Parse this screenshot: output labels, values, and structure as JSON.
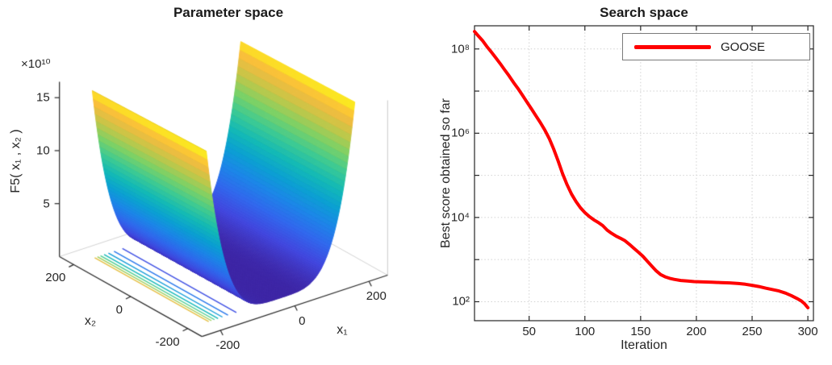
{
  "figure": {
    "background": "#ffffff"
  },
  "chart_data": [
    {
      "type": "surface",
      "title": "Parameter space",
      "x_label": "x₁",
      "y_label": "x₂",
      "z_label": "F5( x₁ , x₂ )",
      "z_exponent_label": "×10¹⁰",
      "x_range": [
        -200,
        200
      ],
      "y_range": [
        -200,
        200
      ],
      "x_ticks": [
        -200,
        0,
        200
      ],
      "y_ticks": [
        -200,
        0,
        200
      ],
      "z_ticks_e10": [
        5,
        10,
        15
      ],
      "z_axis_max_e10": 16.5,
      "surface_function": {
        "name": "rosenbrock",
        "a": 100,
        "b": 1
      },
      "colormap": "parula",
      "floor_contour_levels_e10": [
        2,
        4,
        6,
        8,
        10,
        12,
        14
      ],
      "view": {
        "azimuth": -37.5,
        "elevation": 30
      }
    },
    {
      "type": "line",
      "title": "Search space",
      "xlabel": "Iteration",
      "ylabel": "Best score obtained so far",
      "x_range": [
        1,
        305
      ],
      "y_exp_range": [
        1.55,
        8.55
      ],
      "x_ticks": [
        50,
        100,
        150,
        200,
        250,
        300
      ],
      "y_ticks": [
        {
          "exponent": 8,
          "label": "10⁸"
        },
        {
          "exponent": 6,
          "label": "10⁶"
        },
        {
          "exponent": 4,
          "label": "10⁴"
        },
        {
          "exponent": 2,
          "label": "10²"
        }
      ],
      "grid": true,
      "grid_color": "#d2d2d2",
      "axis_color": "#262626",
      "legend": {
        "position": "northeast"
      },
      "series": [
        {
          "name": "GOOSE",
          "color": "#ff0000",
          "width": 4,
          "points": [
            [
              1,
              260000000.0
            ],
            [
              4,
              210000000.0
            ],
            [
              8,
              160000000.0
            ],
            [
              12,
              115000000.0
            ],
            [
              16,
              85000000.0
            ],
            [
              20,
              62000000.0
            ],
            [
              24,
              45000000.0
            ],
            [
              28,
              32000000.0
            ],
            [
              32,
              23000000.0
            ],
            [
              36,
              16000000.0
            ],
            [
              40,
              11500000.0
            ],
            [
              44,
              8000000.0
            ],
            [
              48,
              5500000.0
            ],
            [
              52,
              3800000.0
            ],
            [
              56,
              2600000.0
            ],
            [
              60,
              1800000.0
            ],
            [
              64,
              1200000.0
            ],
            [
              68,
              750000.0
            ],
            [
              72,
              420000.0
            ],
            [
              76,
              220000.0
            ],
            [
              80,
              110000.0
            ],
            [
              84,
              60000.0
            ],
            [
              88,
              36000.0
            ],
            [
              92,
              24000.0
            ],
            [
              96,
              17000.0
            ],
            [
              100,
              13000.0
            ],
            [
              104,
              10500.0
            ],
            [
              108,
              8800.0
            ],
            [
              112,
              7600.0
            ],
            [
              116,
              6400.0
            ],
            [
              120,
              5000.0
            ],
            [
              124,
              4200.0
            ],
            [
              128,
              3600.0
            ],
            [
              132,
              3200.0
            ],
            [
              136,
              2800.0
            ],
            [
              140,
              2300.0
            ],
            [
              144,
              1850.0
            ],
            [
              148,
              1500.0
            ],
            [
              152,
              1200.0
            ],
            [
              156,
              920.0
            ],
            [
              160,
              700.0
            ],
            [
              164,
              540.0
            ],
            [
              168,
              440.0
            ],
            [
              172,
              390.0
            ],
            [
              176,
              360.0
            ],
            [
              180,
              340.0
            ],
            [
              186,
              320.0
            ],
            [
              192,
              310.0
            ],
            [
              198,
              300.0
            ],
            [
              206,
              295.0
            ],
            [
              214,
              290.0
            ],
            [
              222,
              285.0
            ],
            [
              230,
              280.0
            ],
            [
              238,
              270.0
            ],
            [
              244,
              260.0
            ],
            [
              250,
              245.0
            ],
            [
              256,
              230.0
            ],
            [
              262,
              210.0
            ],
            [
              268,
              195.0
            ],
            [
              274,
              180.0
            ],
            [
              280,
              160.0
            ],
            [
              285,
              140.0
            ],
            [
              290,
              120.0
            ],
            [
              294,
              105.0
            ],
            [
              297,
              90.0
            ],
            [
              300,
              72.0
            ]
          ]
        }
      ]
    }
  ]
}
